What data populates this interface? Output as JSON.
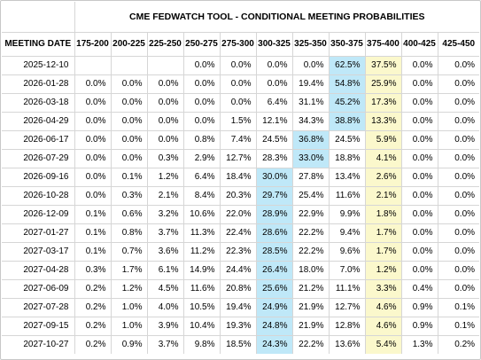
{
  "title": "CME FEDWATCH TOOL - CONDITIONAL MEETING PROBABILITIES",
  "header_first": "MEETING DATE",
  "chart_data": {
    "type": "table",
    "title": "CME FEDWATCH TOOL - CONDITIONAL MEETING PROBABILITIES",
    "columns": [
      "175-200",
      "200-225",
      "225-250",
      "250-275",
      "275-300",
      "300-325",
      "325-350",
      "350-375",
      "375-400",
      "400-425",
      "425-450"
    ],
    "highlight_colors": {
      "blue": "#bfe8f8",
      "yellow": "#fbf8cc"
    },
    "rows": [
      {
        "date": "2025-12-10",
        "values": [
          "",
          "",
          "",
          "0.0%",
          "0.0%",
          "0.0%",
          "0.0%",
          "62.5%",
          "37.5%",
          "0.0%",
          "0.0%"
        ],
        "blue": 7,
        "yellow": 8
      },
      {
        "date": "2026-01-28",
        "values": [
          "0.0%",
          "0.0%",
          "0.0%",
          "0.0%",
          "0.0%",
          "0.0%",
          "19.4%",
          "54.8%",
          "25.9%",
          "0.0%",
          "0.0%"
        ],
        "blue": 7,
        "yellow": 8
      },
      {
        "date": "2026-03-18",
        "values": [
          "0.0%",
          "0.0%",
          "0.0%",
          "0.0%",
          "0.0%",
          "6.4%",
          "31.1%",
          "45.2%",
          "17.3%",
          "0.0%",
          "0.0%"
        ],
        "blue": 7,
        "yellow": 8
      },
      {
        "date": "2026-04-29",
        "values": [
          "0.0%",
          "0.0%",
          "0.0%",
          "0.0%",
          "1.5%",
          "12.1%",
          "34.3%",
          "38.8%",
          "13.3%",
          "0.0%",
          "0.0%"
        ],
        "blue": 7,
        "yellow": 8
      },
      {
        "date": "2026-06-17",
        "values": [
          "0.0%",
          "0.0%",
          "0.0%",
          "0.8%",
          "7.4%",
          "24.5%",
          "36.8%",
          "24.5%",
          "5.9%",
          "0.0%",
          "0.0%"
        ],
        "blue": 6,
        "yellow": 8
      },
      {
        "date": "2026-07-29",
        "values": [
          "0.0%",
          "0.0%",
          "0.3%",
          "2.9%",
          "12.7%",
          "28.3%",
          "33.0%",
          "18.8%",
          "4.1%",
          "0.0%",
          "0.0%"
        ],
        "blue": 6,
        "yellow": 8
      },
      {
        "date": "2026-09-16",
        "values": [
          "0.0%",
          "0.1%",
          "1.2%",
          "6.4%",
          "18.4%",
          "30.0%",
          "27.8%",
          "13.4%",
          "2.6%",
          "0.0%",
          "0.0%"
        ],
        "blue": 5,
        "yellow": 8
      },
      {
        "date": "2026-10-28",
        "values": [
          "0.0%",
          "0.3%",
          "2.1%",
          "8.4%",
          "20.3%",
          "29.7%",
          "25.4%",
          "11.6%",
          "2.1%",
          "0.0%",
          "0.0%"
        ],
        "blue": 5,
        "yellow": 8
      },
      {
        "date": "2026-12-09",
        "values": [
          "0.1%",
          "0.6%",
          "3.2%",
          "10.6%",
          "22.0%",
          "28.9%",
          "22.9%",
          "9.9%",
          "1.8%",
          "0.0%",
          "0.0%"
        ],
        "blue": 5,
        "yellow": 8
      },
      {
        "date": "2027-01-27",
        "values": [
          "0.1%",
          "0.8%",
          "3.7%",
          "11.3%",
          "22.4%",
          "28.6%",
          "22.2%",
          "9.4%",
          "1.7%",
          "0.0%",
          "0.0%"
        ],
        "blue": 5,
        "yellow": 8
      },
      {
        "date": "2027-03-17",
        "values": [
          "0.1%",
          "0.7%",
          "3.6%",
          "11.2%",
          "22.3%",
          "28.5%",
          "22.2%",
          "9.6%",
          "1.7%",
          "0.0%",
          "0.0%"
        ],
        "blue": 5,
        "yellow": 8
      },
      {
        "date": "2027-04-28",
        "values": [
          "0.3%",
          "1.7%",
          "6.1%",
          "14.9%",
          "24.4%",
          "26.4%",
          "18.0%",
          "7.0%",
          "1.2%",
          "0.0%",
          "0.0%"
        ],
        "blue": 5,
        "yellow": 8
      },
      {
        "date": "2027-06-09",
        "values": [
          "0.2%",
          "1.2%",
          "4.5%",
          "11.6%",
          "20.8%",
          "25.6%",
          "21.2%",
          "11.1%",
          "3.3%",
          "0.4%",
          "0.0%"
        ],
        "blue": 5,
        "yellow": 8
      },
      {
        "date": "2027-07-28",
        "values": [
          "0.2%",
          "1.0%",
          "4.0%",
          "10.5%",
          "19.4%",
          "24.9%",
          "21.9%",
          "12.7%",
          "4.6%",
          "0.9%",
          "0.1%"
        ],
        "blue": 5,
        "yellow": 8
      },
      {
        "date": "2027-09-15",
        "values": [
          "0.2%",
          "1.0%",
          "3.9%",
          "10.4%",
          "19.3%",
          "24.8%",
          "21.9%",
          "12.8%",
          "4.6%",
          "0.9%",
          "0.1%"
        ],
        "blue": 5,
        "yellow": 8
      },
      {
        "date": "2027-10-27",
        "values": [
          "0.2%",
          "0.9%",
          "3.7%",
          "9.8%",
          "18.5%",
          "24.3%",
          "22.2%",
          "13.6%",
          "5.4%",
          "1.3%",
          "0.2%"
        ],
        "blue": 5,
        "yellow": 8
      }
    ]
  }
}
